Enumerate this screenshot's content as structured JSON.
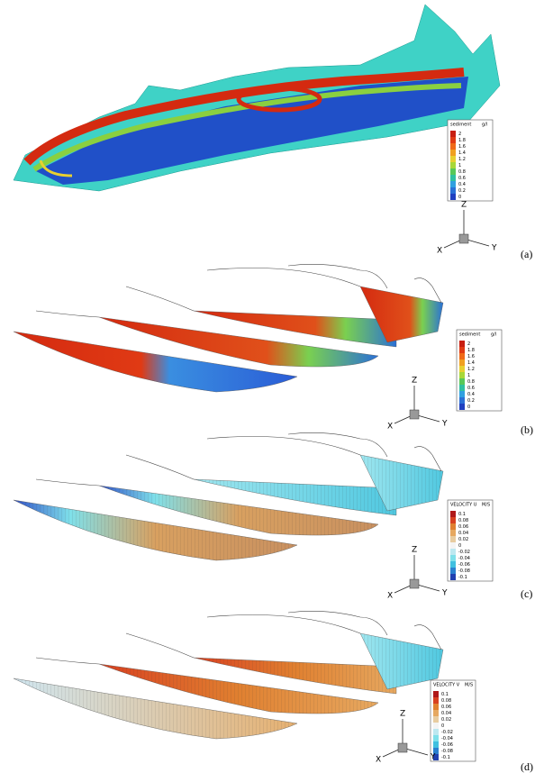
{
  "panels": [
    {
      "label": "(a)",
      "legend": {
        "title": "sediment",
        "unit": "g/l",
        "labels": [
          "2",
          "1.8",
          "1.6",
          "1.4",
          "1.2",
          "1",
          "0.8",
          "0.6",
          "0.4",
          "0.2",
          "0"
        ]
      },
      "axes": {
        "z": "Z",
        "x": "X",
        "y": "Y"
      }
    },
    {
      "label": "(b)",
      "legend": {
        "title": "sediment",
        "unit": "g/l",
        "labels": [
          "2",
          "1.8",
          "1.6",
          "1.4",
          "1.2",
          "1",
          "0.8",
          "0.6",
          "0.4",
          "0.2",
          "0"
        ]
      },
      "axes": {
        "z": "Z",
        "x": "X",
        "y": "Y"
      }
    },
    {
      "label": "(c)",
      "legend": {
        "title": "VELOCITY U",
        "unit": "M/S",
        "labels": [
          "0.1",
          "0.08",
          "0.06",
          "0.04",
          "0.02",
          "0",
          "-0.02",
          "-0.04",
          "-0.06",
          "-0.08",
          "-0.1"
        ]
      },
      "axes": {
        "z": "Z",
        "x": "X",
        "y": "Y"
      }
    },
    {
      "label": "(d)",
      "legend": {
        "title": "VELOCITY V",
        "unit": "M/S",
        "labels": [
          "0.1",
          "0.08",
          "0.06",
          "0.04",
          "0.02",
          "0",
          "-0.02",
          "-0.04",
          "-0.06",
          "-0.08",
          "-0.1"
        ]
      },
      "axes": {
        "z": "Z",
        "x": "X",
        "y": "Y"
      }
    }
  ]
}
